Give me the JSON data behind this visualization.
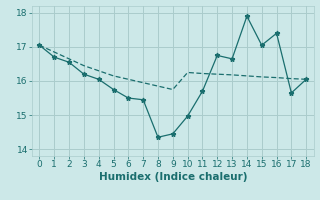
{
  "xlabel": "Humidex (Indice chaleur)",
  "background_color": "#cce8e8",
  "grid_color": "#aacccc",
  "line_color": "#1a6e6e",
  "xlim": [
    -0.5,
    18.5
  ],
  "ylim": [
    13.8,
    18.2
  ],
  "xticks": [
    0,
    1,
    2,
    3,
    4,
    5,
    6,
    7,
    8,
    9,
    10,
    11,
    12,
    13,
    14,
    15,
    16,
    17,
    18
  ],
  "yticks": [
    14,
    15,
    16,
    17,
    18
  ],
  "series1_x": [
    0,
    1,
    2,
    3,
    4,
    5,
    6,
    7,
    8,
    9,
    10,
    11,
    12,
    13,
    14,
    15,
    16,
    17,
    18
  ],
  "series1_y": [
    17.05,
    16.7,
    16.55,
    16.2,
    16.05,
    15.75,
    15.5,
    15.45,
    14.35,
    14.45,
    14.97,
    15.7,
    16.75,
    16.65,
    17.9,
    17.05,
    17.4,
    15.65,
    16.05
  ],
  "series2_x": [
    0,
    1,
    2,
    3,
    4,
    5,
    6,
    7,
    8,
    9,
    10,
    11,
    12,
    13,
    14,
    15,
    16,
    17,
    18
  ],
  "series2_y": [
    17.05,
    16.85,
    16.65,
    16.45,
    16.3,
    16.15,
    16.05,
    15.95,
    15.85,
    15.75,
    16.25,
    16.22,
    16.2,
    16.18,
    16.15,
    16.12,
    16.1,
    16.07,
    16.05
  ],
  "xlabel_color": "#1a6e6e",
  "xlabel_fontsize": 7.5,
  "tick_fontsize": 6.5,
  "tick_color": "#1a6e6e"
}
